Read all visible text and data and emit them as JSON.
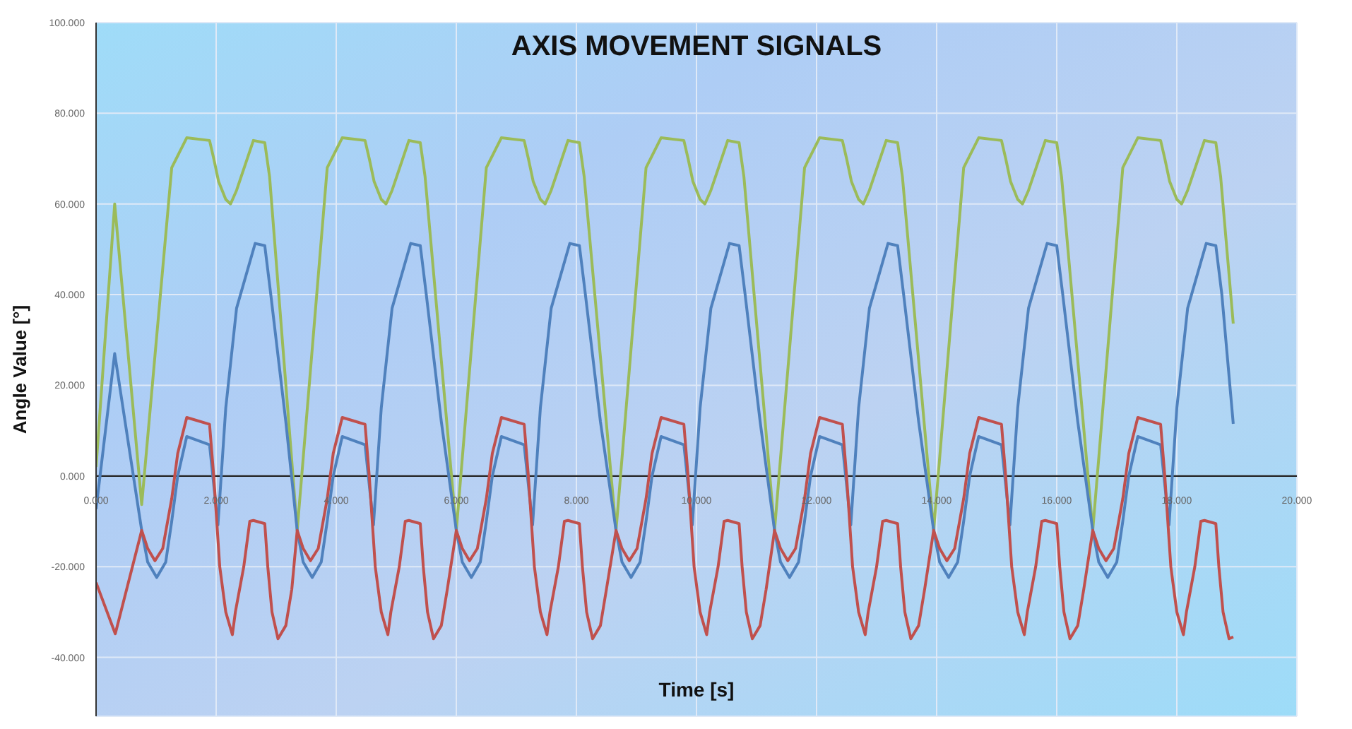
{
  "chart_data": {
    "type": "line",
    "title": "AXIS MOVEMENT SIGNALS",
    "xlabel": "Time [s]",
    "ylabel": "Angle Value [°]",
    "xlim": [
      0,
      20
    ],
    "ylim": [
      -53,
      100
    ],
    "xticks": [
      {
        "value": 0,
        "label": "0.000"
      },
      {
        "value": 2,
        "label": "2.000"
      },
      {
        "value": 4,
        "label": "4.000"
      },
      {
        "value": 6,
        "label": "6.000"
      },
      {
        "value": 8,
        "label": "8.000"
      },
      {
        "value": 10,
        "label": "10.000"
      },
      {
        "value": 12,
        "label": "12.000"
      },
      {
        "value": 14,
        "label": "14.000"
      },
      {
        "value": 16,
        "label": "16.000"
      },
      {
        "value": 18,
        "label": "18.000"
      },
      {
        "value": 20,
        "label": "20.000"
      }
    ],
    "yticks": [
      {
        "value": -40,
        "label": "-40.000"
      },
      {
        "value": -20,
        "label": "-20.000"
      },
      {
        "value": 0,
        "label": "0.000"
      },
      {
        "value": 20,
        "label": "20.000"
      },
      {
        "value": 40,
        "label": "40.000"
      },
      {
        "value": 60,
        "label": "60.000"
      },
      {
        "value": 80,
        "label": "80.000"
      },
      {
        "value": 100,
        "label": "100.000"
      }
    ],
    "grid": true,
    "legend": false,
    "marker": "none",
    "series": [
      {
        "color": "#9bbb59",
        "x": [
          0,
          0.31,
          0.76,
          1.26,
          1.51,
          1.89,
          1.96,
          2.04,
          2.16,
          2.24,
          2.34,
          2.62,
          2.81,
          2.89,
          3.35,
          3.85,
          4.1,
          4.48,
          4.55,
          4.63,
          4.75,
          4.83,
          4.93,
          5.21,
          5.4,
          5.48,
          6.0,
          6.5,
          6.75,
          7.13,
          7.2,
          7.28,
          7.4,
          7.48,
          7.58,
          7.86,
          8.05,
          8.13,
          8.66,
          9.16,
          9.41,
          9.79,
          9.86,
          9.94,
          10.06,
          10.14,
          10.24,
          10.52,
          10.71,
          10.79,
          11.3,
          11.8,
          12.05,
          12.43,
          12.5,
          12.58,
          12.7,
          12.78,
          12.88,
          13.16,
          13.35,
          13.43,
          13.95,
          14.45,
          14.7,
          15.08,
          15.15,
          15.23,
          15.35,
          15.43,
          15.53,
          15.81,
          16.0,
          16.08,
          16.6,
          17.1,
          17.35,
          17.73,
          17.8,
          17.88,
          18.0,
          18.08,
          18.18,
          18.46,
          18.65,
          18.73,
          18.94
        ],
        "values": [
          2,
          60,
          -6.3,
          68,
          74.6,
          74,
          70,
          65,
          61,
          60,
          63,
          74,
          73.5,
          66,
          -12,
          68,
          74.6,
          74,
          70,
          65,
          61,
          60,
          63,
          74,
          73.5,
          66,
          -12,
          68,
          74.6,
          74,
          70,
          65,
          61,
          60,
          63,
          74,
          73.5,
          66,
          -12,
          68,
          74.6,
          74,
          70,
          65,
          61,
          60,
          63,
          74,
          73.5,
          66,
          -12,
          68,
          74.6,
          74,
          70,
          65,
          61,
          60,
          63,
          74,
          73.5,
          66,
          -12,
          68,
          74.6,
          74,
          70,
          65,
          61,
          60,
          63,
          74,
          73.5,
          66,
          -12,
          68,
          74.6,
          74,
          70,
          65,
          61,
          60,
          63,
          74,
          73.5,
          66,
          33.6
        ]
      },
      {
        "color": "#4f81bd",
        "x": [
          0,
          0.31,
          0.76,
          0.86,
          1.01,
          1.16,
          1.26,
          1.36,
          1.51,
          1.89,
          2.03,
          2.16,
          2.34,
          2.65,
          2.81,
          2.91,
          3.16,
          3.35,
          3.45,
          3.6,
          3.75,
          3.85,
          3.95,
          4.1,
          4.48,
          4.62,
          4.75,
          4.93,
          5.24,
          5.4,
          5.5,
          5.75,
          6.0,
          6.1,
          6.25,
          6.4,
          6.5,
          6.6,
          6.75,
          7.13,
          7.27,
          7.4,
          7.58,
          7.89,
          8.05,
          8.15,
          8.4,
          8.66,
          8.76,
          8.91,
          9.06,
          9.16,
          9.26,
          9.41,
          9.79,
          9.93,
          10.06,
          10.24,
          10.55,
          10.71,
          10.81,
          11.06,
          11.3,
          11.4,
          11.55,
          11.7,
          11.8,
          11.9,
          12.05,
          12.43,
          12.57,
          12.7,
          12.88,
          13.19,
          13.35,
          13.45,
          13.7,
          13.95,
          14.05,
          14.2,
          14.35,
          14.45,
          14.55,
          14.7,
          15.08,
          15.22,
          15.35,
          15.53,
          15.84,
          16.0,
          16.1,
          16.35,
          16.6,
          16.7,
          16.85,
          17.0,
          17.1,
          17.2,
          17.35,
          17.73,
          17.87,
          18.0,
          18.18,
          18.49,
          18.65,
          18.75,
          18.94
        ],
        "values": [
          -7.3,
          27,
          -12,
          -19,
          -22.4,
          -19,
          -10,
          0,
          8.7,
          6.9,
          -10.8,
          15,
          37,
          51.3,
          50.8,
          40,
          12,
          -12,
          -19,
          -22.4,
          -19,
          -10,
          0,
          8.7,
          6.9,
          -10.8,
          15,
          37,
          51.3,
          50.8,
          40,
          12,
          -12,
          -19,
          -22.4,
          -19,
          -10,
          0,
          8.7,
          6.9,
          -10.8,
          15,
          37,
          51.3,
          50.8,
          40,
          12,
          -12,
          -19,
          -22.4,
          -19,
          -10,
          0,
          8.7,
          6.9,
          -10.8,
          15,
          37,
          51.3,
          50.8,
          40,
          12,
          -12,
          -19,
          -22.4,
          -19,
          -10,
          0,
          8.7,
          6.9,
          -10.8,
          15,
          37,
          51.3,
          50.8,
          40,
          12,
          -12,
          -19,
          -22.4,
          -19,
          -10,
          0,
          8.7,
          6.9,
          -10.8,
          15,
          37,
          51.3,
          50.8,
          40,
          12,
          -12,
          -19,
          -22.4,
          -19,
          -10,
          0,
          8.7,
          6.9,
          -10.8,
          15,
          37,
          51.3,
          50.8,
          40,
          11.5
        ]
      },
      {
        "color": "#c0504d",
        "x": [
          0,
          0.32,
          0.76,
          0.86,
          0.98,
          1.11,
          1.26,
          1.36,
          1.51,
          1.89,
          1.96,
          2.06,
          2.16,
          2.27,
          2.32,
          2.46,
          2.56,
          2.62,
          2.81,
          2.86,
          2.93,
          3.03,
          3.16,
          3.26,
          3.35,
          3.45,
          3.57,
          3.7,
          3.85,
          3.95,
          4.1,
          4.48,
          4.55,
          4.65,
          4.75,
          4.86,
          4.91,
          5.05,
          5.15,
          5.21,
          5.4,
          5.45,
          5.52,
          5.62,
          5.75,
          5.85,
          6.0,
          6.1,
          6.22,
          6.35,
          6.5,
          6.6,
          6.75,
          7.13,
          7.2,
          7.3,
          7.4,
          7.51,
          7.56,
          7.7,
          7.8,
          7.86,
          8.05,
          8.1,
          8.17,
          8.27,
          8.4,
          8.5,
          8.66,
          8.76,
          8.88,
          9.01,
          9.16,
          9.26,
          9.41,
          9.79,
          9.86,
          9.96,
          10.06,
          10.17,
          10.22,
          10.36,
          10.46,
          10.52,
          10.71,
          10.76,
          10.83,
          10.93,
          11.06,
          11.16,
          11.3,
          11.4,
          11.52,
          11.65,
          11.8,
          11.9,
          12.05,
          12.43,
          12.5,
          12.6,
          12.7,
          12.81,
          12.86,
          13.0,
          13.1,
          13.16,
          13.35,
          13.4,
          13.47,
          13.57,
          13.7,
          13.8,
          13.95,
          14.05,
          14.17,
          14.3,
          14.45,
          14.55,
          14.7,
          15.08,
          15.15,
          15.25,
          15.35,
          15.46,
          15.51,
          15.65,
          15.75,
          15.81,
          16.0,
          16.05,
          16.12,
          16.22,
          16.35,
          16.45,
          16.6,
          16.7,
          16.82,
          16.95,
          17.1,
          17.2,
          17.35,
          17.73,
          17.8,
          17.9,
          18.0,
          18.11,
          18.16,
          18.3,
          18.4,
          18.46,
          18.65,
          18.7,
          18.77,
          18.87,
          18.94
        ],
        "values": [
          -23.5,
          -34.8,
          -12,
          -16,
          -18.7,
          -16,
          -5,
          5,
          12.9,
          11.4,
          0,
          -20,
          -30,
          -35,
          -30,
          -20,
          -10,
          -9.8,
          -10.5,
          -20,
          -30,
          -35.9,
          -33,
          -25,
          -12,
          -16,
          -18.7,
          -16,
          -5,
          5,
          12.9,
          11.4,
          0,
          -20,
          -30,
          -35,
          -30,
          -20,
          -10,
          -9.8,
          -10.5,
          -20,
          -30,
          -35.9,
          -33,
          -25,
          -12,
          -16,
          -18.7,
          -16,
          -5,
          5,
          12.9,
          11.4,
          0,
          -20,
          -30,
          -35,
          -30,
          -20,
          -10,
          -9.8,
          -10.5,
          -20,
          -30,
          -35.9,
          -33,
          -25,
          -12,
          -16,
          -18.7,
          -16,
          -5,
          5,
          12.9,
          11.4,
          0,
          -20,
          -30,
          -35,
          -30,
          -20,
          -10,
          -9.8,
          -10.5,
          -20,
          -30,
          -35.9,
          -33,
          -25,
          -12,
          -16,
          -18.7,
          -16,
          -5,
          5,
          12.9,
          11.4,
          0,
          -20,
          -30,
          -35,
          -30,
          -20,
          -10,
          -9.8,
          -10.5,
          -20,
          -30,
          -35.9,
          -33,
          -25,
          -12,
          -16,
          -18.7,
          -16,
          -5,
          5,
          12.9,
          11.4,
          0,
          -20,
          -30,
          -35,
          -30,
          -20,
          -10,
          -9.8,
          -10.5,
          -20,
          -30,
          -35.9,
          -33,
          -25,
          -12,
          -16,
          -18.7,
          -16,
          -5,
          5,
          12.9,
          11.4,
          0,
          -20,
          -30,
          -35,
          -30,
          -20,
          -10,
          -9.8,
          -10.5,
          -20,
          -30,
          -35.9,
          -35.5
        ]
      }
    ]
  }
}
